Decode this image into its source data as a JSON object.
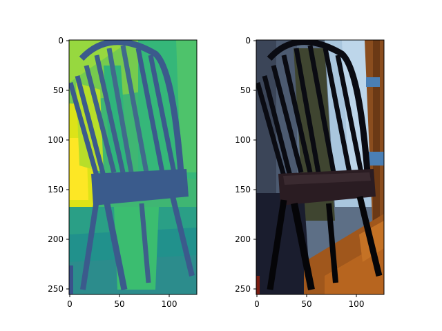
{
  "figure": {
    "panels": [
      {
        "name": "depth-panel",
        "colormap": "viridis",
        "x_ticks": [
          "0",
          "50",
          "100"
        ],
        "y_ticks": [
          "0",
          "50",
          "100",
          "150",
          "200",
          "250"
        ],
        "xlim": [
          0,
          128
        ],
        "ylim": [
          256,
          0
        ]
      },
      {
        "name": "rgb-panel",
        "x_ticks": [
          "0",
          "50",
          "100"
        ],
        "y_ticks": [
          "0",
          "50",
          "100",
          "150",
          "200",
          "250"
        ],
        "xlim": [
          0,
          128
        ],
        "ylim": [
          256,
          0
        ]
      }
    ]
  }
}
